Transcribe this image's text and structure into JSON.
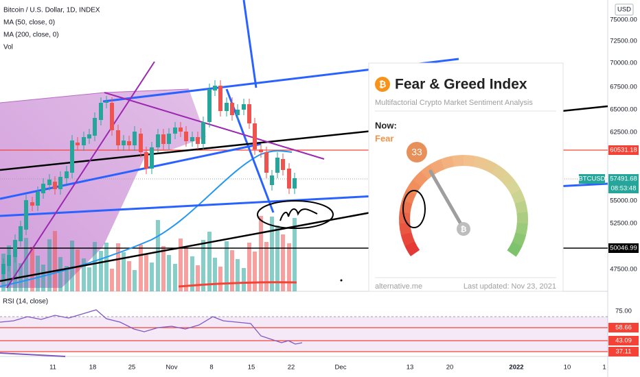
{
  "header": {
    "symbol": "Bitcoin / U.S. Dollar, 1D, INDEX",
    "indicators": [
      "MA (50, close, 0)",
      "MA (200, close, 0)",
      "Vol"
    ]
  },
  "currency": "USD",
  "price_scale": [
    "75000.00",
    "72500.00",
    "70000.00",
    "67500.00",
    "65000.00",
    "62500.00",
    "55000.00",
    "52500.00",
    "47500.00"
  ],
  "price_tags": [
    "60531.18",
    "50046.99"
  ],
  "btc_tag": {
    "symbol": "BTCUSD",
    "price": "57491.68",
    "countdown": "08:53:48"
  },
  "rsi": {
    "label": "RSI (14, close)",
    "scale": [
      "75.00"
    ],
    "tags": [
      "58.66",
      "43.09",
      "37.11"
    ]
  },
  "time_axis": [
    "11",
    "18",
    "25",
    "Nov",
    "8",
    "15",
    "22",
    "Dec",
    "13",
    "20",
    "2022",
    "10",
    "1"
  ],
  "widget": {
    "title": "Fear & Greed Index",
    "subtitle": "Multifactorial Crypto Market Sentiment Analysis",
    "now_label": "Now:",
    "classification": "Fear",
    "value": 33,
    "source": "alternative.me",
    "updated": "Last updated: Nov 23, 2021"
  }
}
